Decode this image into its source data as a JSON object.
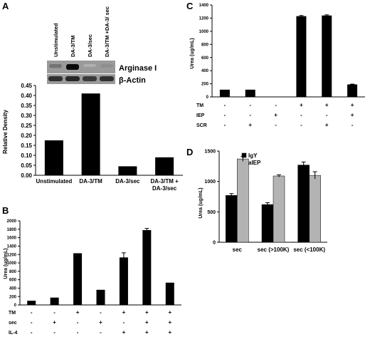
{
  "panels": {
    "A": {
      "letter": "A",
      "blot": {
        "lanes": [
          "Unstimulated",
          "DA-3/TM",
          "DA-3/sec",
          "DA-3/TM +DA-3/ sec"
        ],
        "bands": [
          "Arginase I",
          "β-Actin"
        ],
        "arginase_intensity": [
          0.45,
          1.0,
          0.12,
          0.3
        ],
        "actin_intensity": [
          0.8,
          0.85,
          0.75,
          0.8
        ]
      }
    },
    "B": {
      "letter": "B",
      "condition_rows": [
        "TM",
        "sec",
        "IL-4"
      ]
    },
    "C": {
      "letter": "C",
      "condition_rows": [
        "TM",
        "IEP",
        "SCR"
      ]
    },
    "D": {
      "letter": "D"
    }
  },
  "chart_data": [
    {
      "id": "A",
      "type": "bar",
      "categories": [
        "Unstimulated",
        "DA-3/TM",
        "DA-3/sec",
        "DA-3/TM + DA-3/sec"
      ],
      "values": [
        0.175,
        0.41,
        0.045,
        0.09
      ],
      "ylabel": "Relative Density",
      "ylim": [
        0,
        0.45
      ],
      "yticks": [
        "0.00",
        "0.05",
        "0.10",
        "0.15",
        "0.20",
        "0.25",
        "0.30",
        "0.35",
        "0.40",
        "0.45"
      ],
      "color": "#000000",
      "grid": false
    },
    {
      "id": "B",
      "type": "bar",
      "values": [
        100,
        175,
        1230,
        360,
        1130,
        1780,
        530
      ],
      "errors": [
        0,
        0,
        0,
        0,
        110,
        40,
        0
      ],
      "conditions": [
        [
          "-",
          "-",
          "+",
          "-",
          "+",
          "+",
          "+"
        ],
        [
          "-",
          "+",
          "-",
          "+",
          "-",
          "+",
          "+"
        ],
        [
          "-",
          "-",
          "-",
          "-",
          "+",
          "+",
          "+"
        ]
      ],
      "ylabel": "Urea (ug/mL)",
      "ylim": [
        0,
        2000
      ],
      "yticks": [
        "0",
        "200",
        "400",
        "600",
        "800",
        "1000",
        "1200",
        "1400",
        "1600",
        "1800",
        "2000"
      ],
      "color": "#000000",
      "grid": false
    },
    {
      "id": "C",
      "type": "bar",
      "values": [
        110,
        110,
        0,
        1230,
        1240,
        190
      ],
      "errors": [
        0,
        0,
        0,
        10,
        10,
        5
      ],
      "conditions": [
        [
          "-",
          "-",
          "-",
          "+",
          "+",
          "+"
        ],
        [
          "-",
          "-",
          "+",
          "-",
          "-",
          "+"
        ],
        [
          "-",
          "+",
          "-",
          "-",
          "+",
          "-"
        ]
      ],
      "ylabel": "Urea (ug/mL)",
      "ylim": [
        0,
        1400
      ],
      "yticks": [
        "0",
        "200",
        "400",
        "600",
        "800",
        "1000",
        "1200",
        "1400"
      ],
      "color": "#000000",
      "grid": false
    },
    {
      "id": "D",
      "type": "bar",
      "categories": [
        "sec",
        "sec (>100K)",
        "sec (<100K)"
      ],
      "series": [
        {
          "name": "IgY",
          "values": [
            770,
            620,
            1270
          ],
          "errors": [
            30,
            30,
            50
          ],
          "color": "#000000"
        },
        {
          "name": "aIEP",
          "values": [
            1370,
            1090,
            1100
          ],
          "errors": [
            40,
            20,
            60
          ],
          "color": "#b3b3b3"
        }
      ],
      "ylabel": "Urea (ug/mL)",
      "ylim": [
        0,
        1500
      ],
      "yticks": [
        "0",
        "500",
        "1000",
        "1500"
      ],
      "legend": "top-left",
      "grid": false
    }
  ]
}
